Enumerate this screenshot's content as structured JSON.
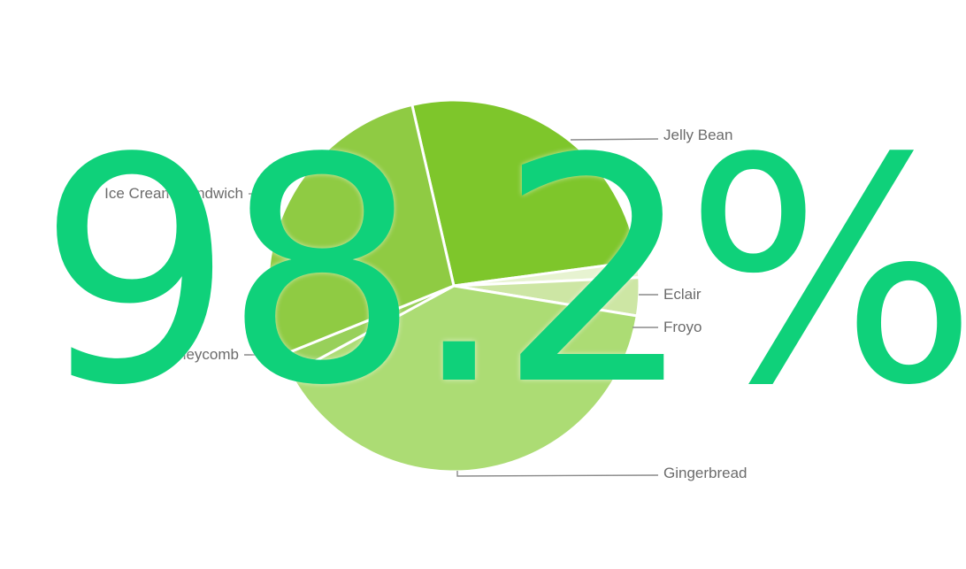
{
  "overlay": {
    "text": "98.2%",
    "color": "#0fd17a"
  },
  "chart_data": {
    "type": "pie",
    "slices": [
      {
        "label": "Jelly Bean",
        "value": 26.5,
        "color": "#7ec62b"
      },
      {
        "label": "Eclair",
        "value": 1.4,
        "color": "#e7f3d1"
      },
      {
        "label": "Froyo",
        "value": 3.3,
        "color": "#cde6a4"
      },
      {
        "label": "Gingerbread",
        "value": 39.5,
        "color": "#acdc74"
      },
      {
        "label": "Honeycomb",
        "value": 1.8,
        "color": "#98d05a"
      },
      {
        "label": "Ice Cream Sandwich",
        "value": 27.5,
        "color": "#8fcb43"
      }
    ]
  }
}
